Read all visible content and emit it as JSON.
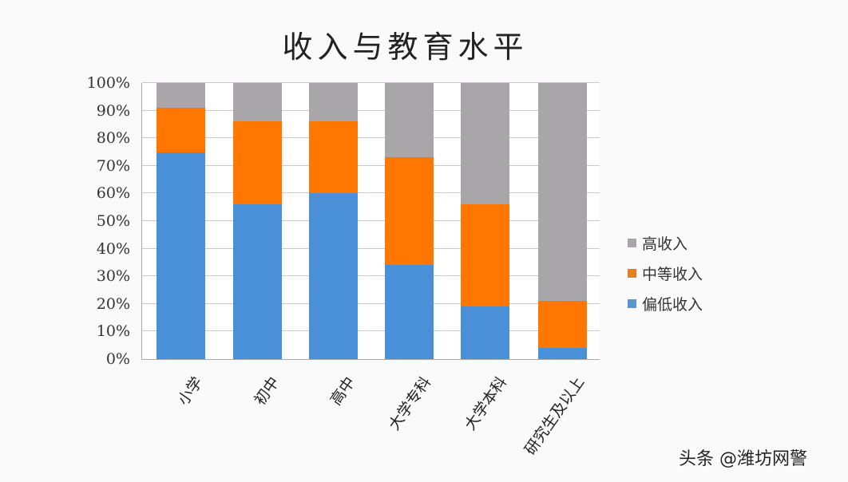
{
  "chart_data": {
    "type": "bar",
    "stacked": true,
    "percent_stacked": true,
    "title": "收入与教育水平",
    "xlabel": "",
    "ylabel": "",
    "ylim": [
      0,
      100
    ],
    "yticks": [
      "0%",
      "10%",
      "20%",
      "30%",
      "40%",
      "50%",
      "60%",
      "70%",
      "80%",
      "90%",
      "100%"
    ],
    "grid": true,
    "legend_position": "right",
    "categories": [
      "小学",
      "初中",
      "高中",
      "大学专科",
      "大学本科",
      "研究生及以上"
    ],
    "series": [
      {
        "name": "偏低收入",
        "color": "#4a90d9",
        "values": [
          75,
          56,
          60,
          34,
          19,
          4
        ]
      },
      {
        "name": "中等收入",
        "color": "#ff7700",
        "values": [
          16,
          30,
          26,
          39,
          37,
          17
        ]
      },
      {
        "name": "高收入",
        "color": "#a8a6a8",
        "values": [
          9,
          14,
          14,
          27,
          44,
          79
        ]
      }
    ]
  },
  "legend": {
    "items": [
      {
        "label": "高收入",
        "color": "#a8a6a8"
      },
      {
        "label": "中等收入",
        "color": "#e3821c"
      },
      {
        "label": "偏低收入",
        "color": "#5b96cf"
      }
    ]
  },
  "watermark": "头条 @潍坊网警"
}
